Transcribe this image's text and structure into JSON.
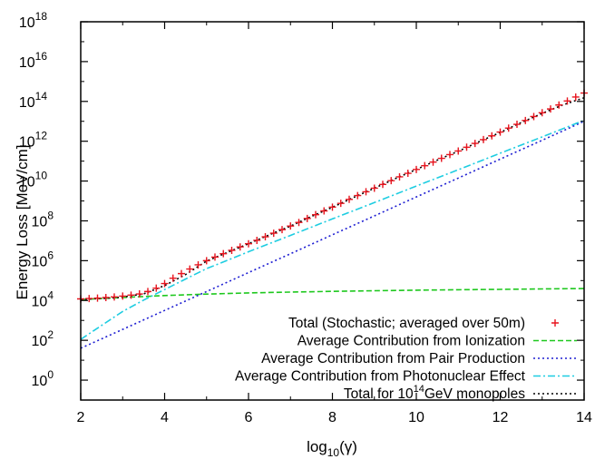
{
  "chart_data": {
    "type": "scatter",
    "xlabel": "log",
    "xlabel_sub": "10",
    "xlabel_tail": "(γ)",
    "ylabel": "Energy Loss [MeV/cm]",
    "xlim": [
      2,
      14
    ],
    "ylim_log10": [
      -1,
      18
    ],
    "y_log_scale": true,
    "x_ticks": [
      "2",
      "4",
      "6",
      "8",
      "10",
      "12",
      "14"
    ],
    "y_ticks": [
      {
        "base": "10",
        "exp": "0"
      },
      {
        "base": "10",
        "exp": "2"
      },
      {
        "base": "10",
        "exp": "4"
      },
      {
        "base": "10",
        "exp": "6"
      },
      {
        "base": "10",
        "exp": "8"
      },
      {
        "base": "10",
        "exp": "10"
      },
      {
        "base": "10",
        "exp": "12"
      },
      {
        "base": "10",
        "exp": "14"
      },
      {
        "base": "10",
        "exp": "16"
      },
      {
        "base": "10",
        "exp": "18"
      }
    ],
    "grid": false,
    "legend_position": "bottom-right",
    "series": [
      {
        "name": "Total (Stochastic; averaged over 50m)",
        "style": "markers",
        "marker": "+",
        "color": "#e8141e",
        "x": [
          2.0,
          2.2,
          2.4,
          2.6,
          2.8,
          3.0,
          3.2,
          3.4,
          3.6,
          3.8,
          4.0,
          4.2,
          4.4,
          4.6,
          4.8,
          5.0,
          5.2,
          5.4,
          5.6,
          5.8,
          6.0,
          6.2,
          6.4,
          6.6,
          6.8,
          7.0,
          7.2,
          7.4,
          7.6,
          7.8,
          8.0,
          8.2,
          8.4,
          8.6,
          8.8,
          9.0,
          9.2,
          9.4,
          9.6,
          9.8,
          10.0,
          10.2,
          10.4,
          10.6,
          10.8,
          11.0,
          11.2,
          11.4,
          11.6,
          11.8,
          12.0,
          12.2,
          12.4,
          12.6,
          12.8,
          13.0,
          13.2,
          13.4,
          13.6,
          13.8,
          14.0
        ],
        "log10_y": [
          4.08,
          4.1,
          4.12,
          4.15,
          4.18,
          4.22,
          4.27,
          4.33,
          4.45,
          4.62,
          4.85,
          5.12,
          5.35,
          5.58,
          5.79,
          6.0,
          6.18,
          6.35,
          6.52,
          6.69,
          6.85,
          7.02,
          7.2,
          7.38,
          7.56,
          7.74,
          7.92,
          8.12,
          8.31,
          8.5,
          8.69,
          8.88,
          9.08,
          9.27,
          9.46,
          9.64,
          9.83,
          10.02,
          10.21,
          10.39,
          10.58,
          10.77,
          10.95,
          11.14,
          11.33,
          11.51,
          11.7,
          11.89,
          12.08,
          12.27,
          12.46,
          12.66,
          12.85,
          13.04,
          13.24,
          13.43,
          13.62,
          13.82,
          14.02,
          14.22,
          14.42
        ]
      },
      {
        "name": "Average Contribution from Ionization",
        "style": "dashed",
        "color": "#1ec81e",
        "x": [
          2,
          3,
          4,
          5,
          6,
          7,
          8,
          9,
          10,
          11,
          12,
          13,
          14
        ],
        "log10_y": [
          4.05,
          4.15,
          4.25,
          4.32,
          4.38,
          4.42,
          4.46,
          4.49,
          4.52,
          4.54,
          4.56,
          4.58,
          4.6
        ]
      },
      {
        "name": "Average Contribution from Pair Production",
        "style": "dotted",
        "color": "#1e1ed2",
        "x": [
          2,
          3,
          4,
          5,
          6,
          7,
          8,
          9,
          10,
          11,
          12,
          13,
          14
        ],
        "log10_y": [
          1.6,
          2.55,
          3.5,
          4.45,
          5.4,
          6.35,
          7.3,
          8.25,
          9.2,
          10.15,
          11.1,
          12.05,
          13.0
        ]
      },
      {
        "name": "Average Contribution from Photonuclear Effect",
        "style": "dashdot",
        "color": "#1ecde1",
        "x": [
          2,
          2.5,
          3,
          3.5,
          4,
          4.5,
          5,
          5.5,
          6,
          7,
          8,
          9,
          10,
          11,
          12,
          13,
          14
        ],
        "log10_y": [
          2.05,
          2.75,
          3.45,
          4.02,
          4.55,
          5.08,
          5.6,
          6.02,
          6.45,
          7.27,
          8.1,
          8.92,
          9.75,
          10.57,
          11.4,
          12.22,
          13.05
        ]
      },
      {
        "name": "Total for 10^14GeV monopoles",
        "legend_label_pre": "Total for 10",
        "legend_label_sup": "14",
        "legend_label_post": "GeV monopoles",
        "style": "dotted",
        "color": "#000000",
        "x": [
          2,
          2.5,
          3,
          3.5,
          4,
          4.5,
          5,
          5.5,
          6,
          6.5,
          7,
          7.5,
          8,
          8.5,
          9,
          9.5,
          10,
          10.5,
          11,
          11.5,
          12,
          12.5,
          13,
          13.5,
          14
        ],
        "log10_y": [
          4.06,
          4.1,
          4.17,
          4.33,
          4.75,
          5.3,
          5.98,
          6.42,
          6.85,
          7.3,
          7.74,
          8.22,
          8.68,
          9.17,
          9.64,
          10.12,
          10.58,
          11.05,
          11.5,
          11.98,
          12.44,
          12.94,
          13.4,
          13.83,
          14.18
        ]
      }
    ]
  }
}
